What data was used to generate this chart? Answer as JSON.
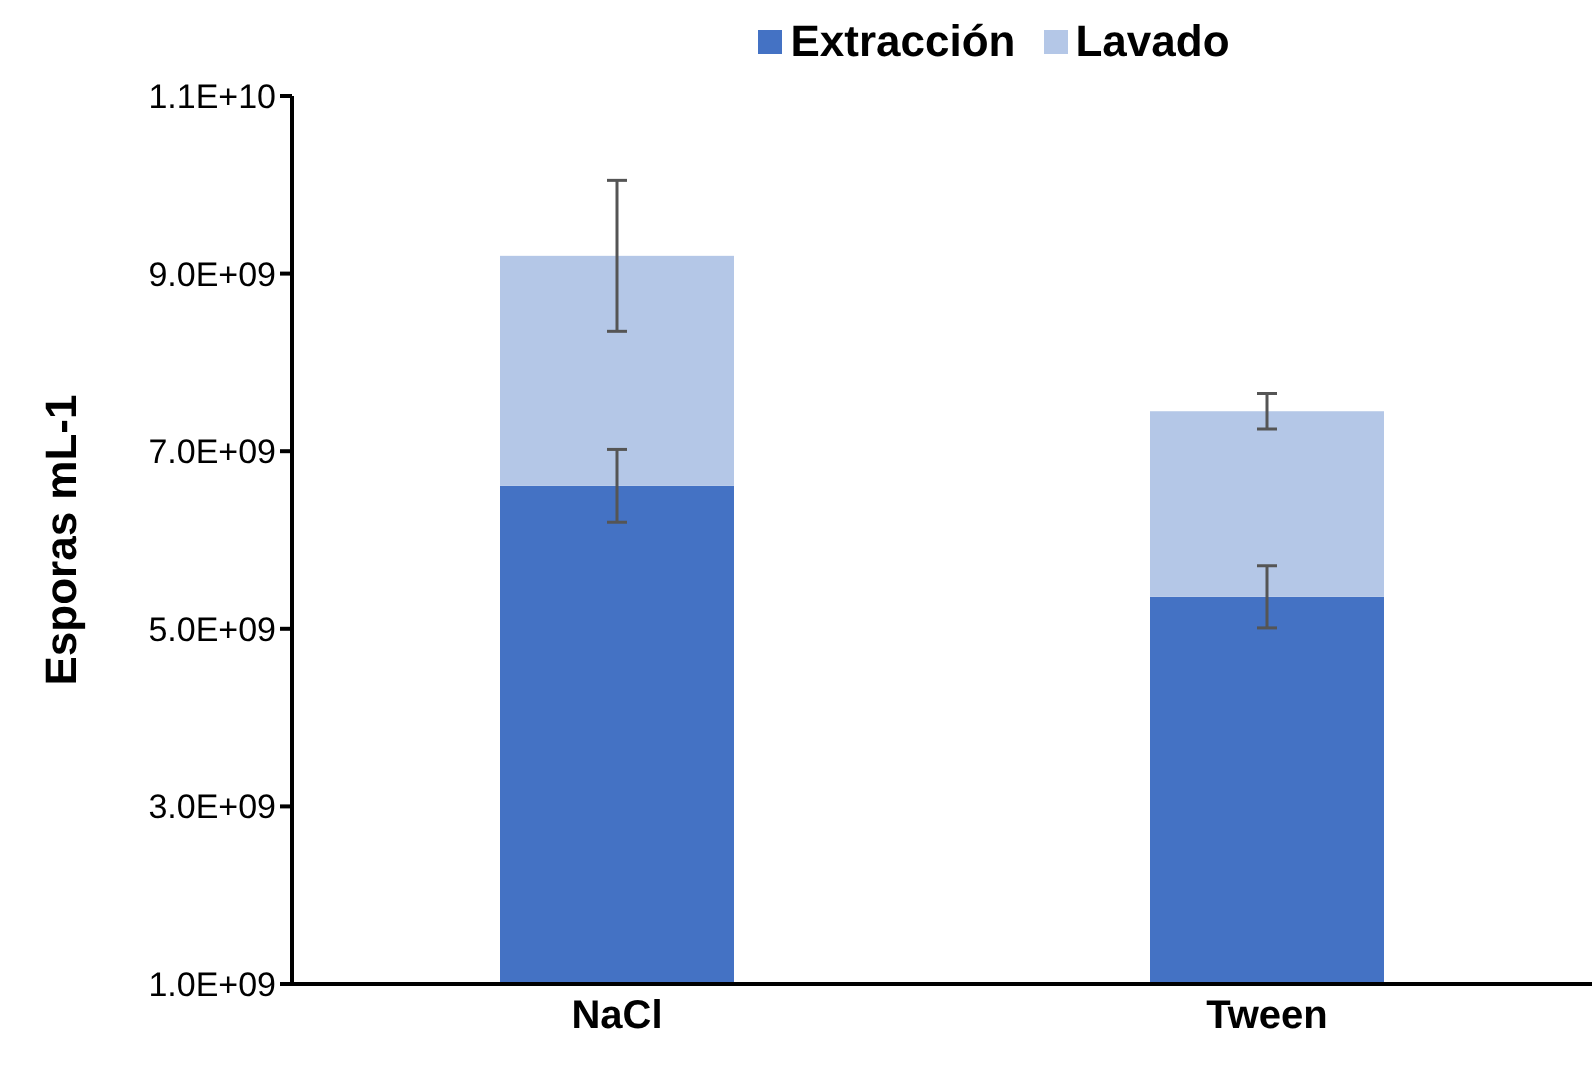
{
  "chart_data": {
    "type": "bar",
    "stacked": true,
    "ylabel": "Esporas mL-1",
    "categories": [
      "NaCl",
      "Tween"
    ],
    "series": [
      {
        "name": "Extracción",
        "color": "#4472c4",
        "values": [
          6610000000,
          5360000000
        ],
        "errors": [
          410000000,
          350000000
        ]
      },
      {
        "name": "Lavado",
        "color": "#b4c7e7",
        "values": [
          2590000000,
          2090000000
        ],
        "errors": [
          850000000,
          200000000
        ]
      }
    ],
    "ylim": [
      1000000000,
      11000000000
    ],
    "yticks": [
      {
        "value": 1000000000,
        "label": "1.0E+09"
      },
      {
        "value": 3000000000,
        "label": "3.0E+09"
      },
      {
        "value": 5000000000,
        "label": "5.0E+09"
      },
      {
        "value": 7000000000,
        "label": "7.0E+09"
      },
      {
        "value": 9000000000,
        "label": "9.0E+09"
      },
      {
        "value": 11000000000,
        "label": "1.1E+10"
      }
    ],
    "grid": false,
    "legend": "top"
  }
}
